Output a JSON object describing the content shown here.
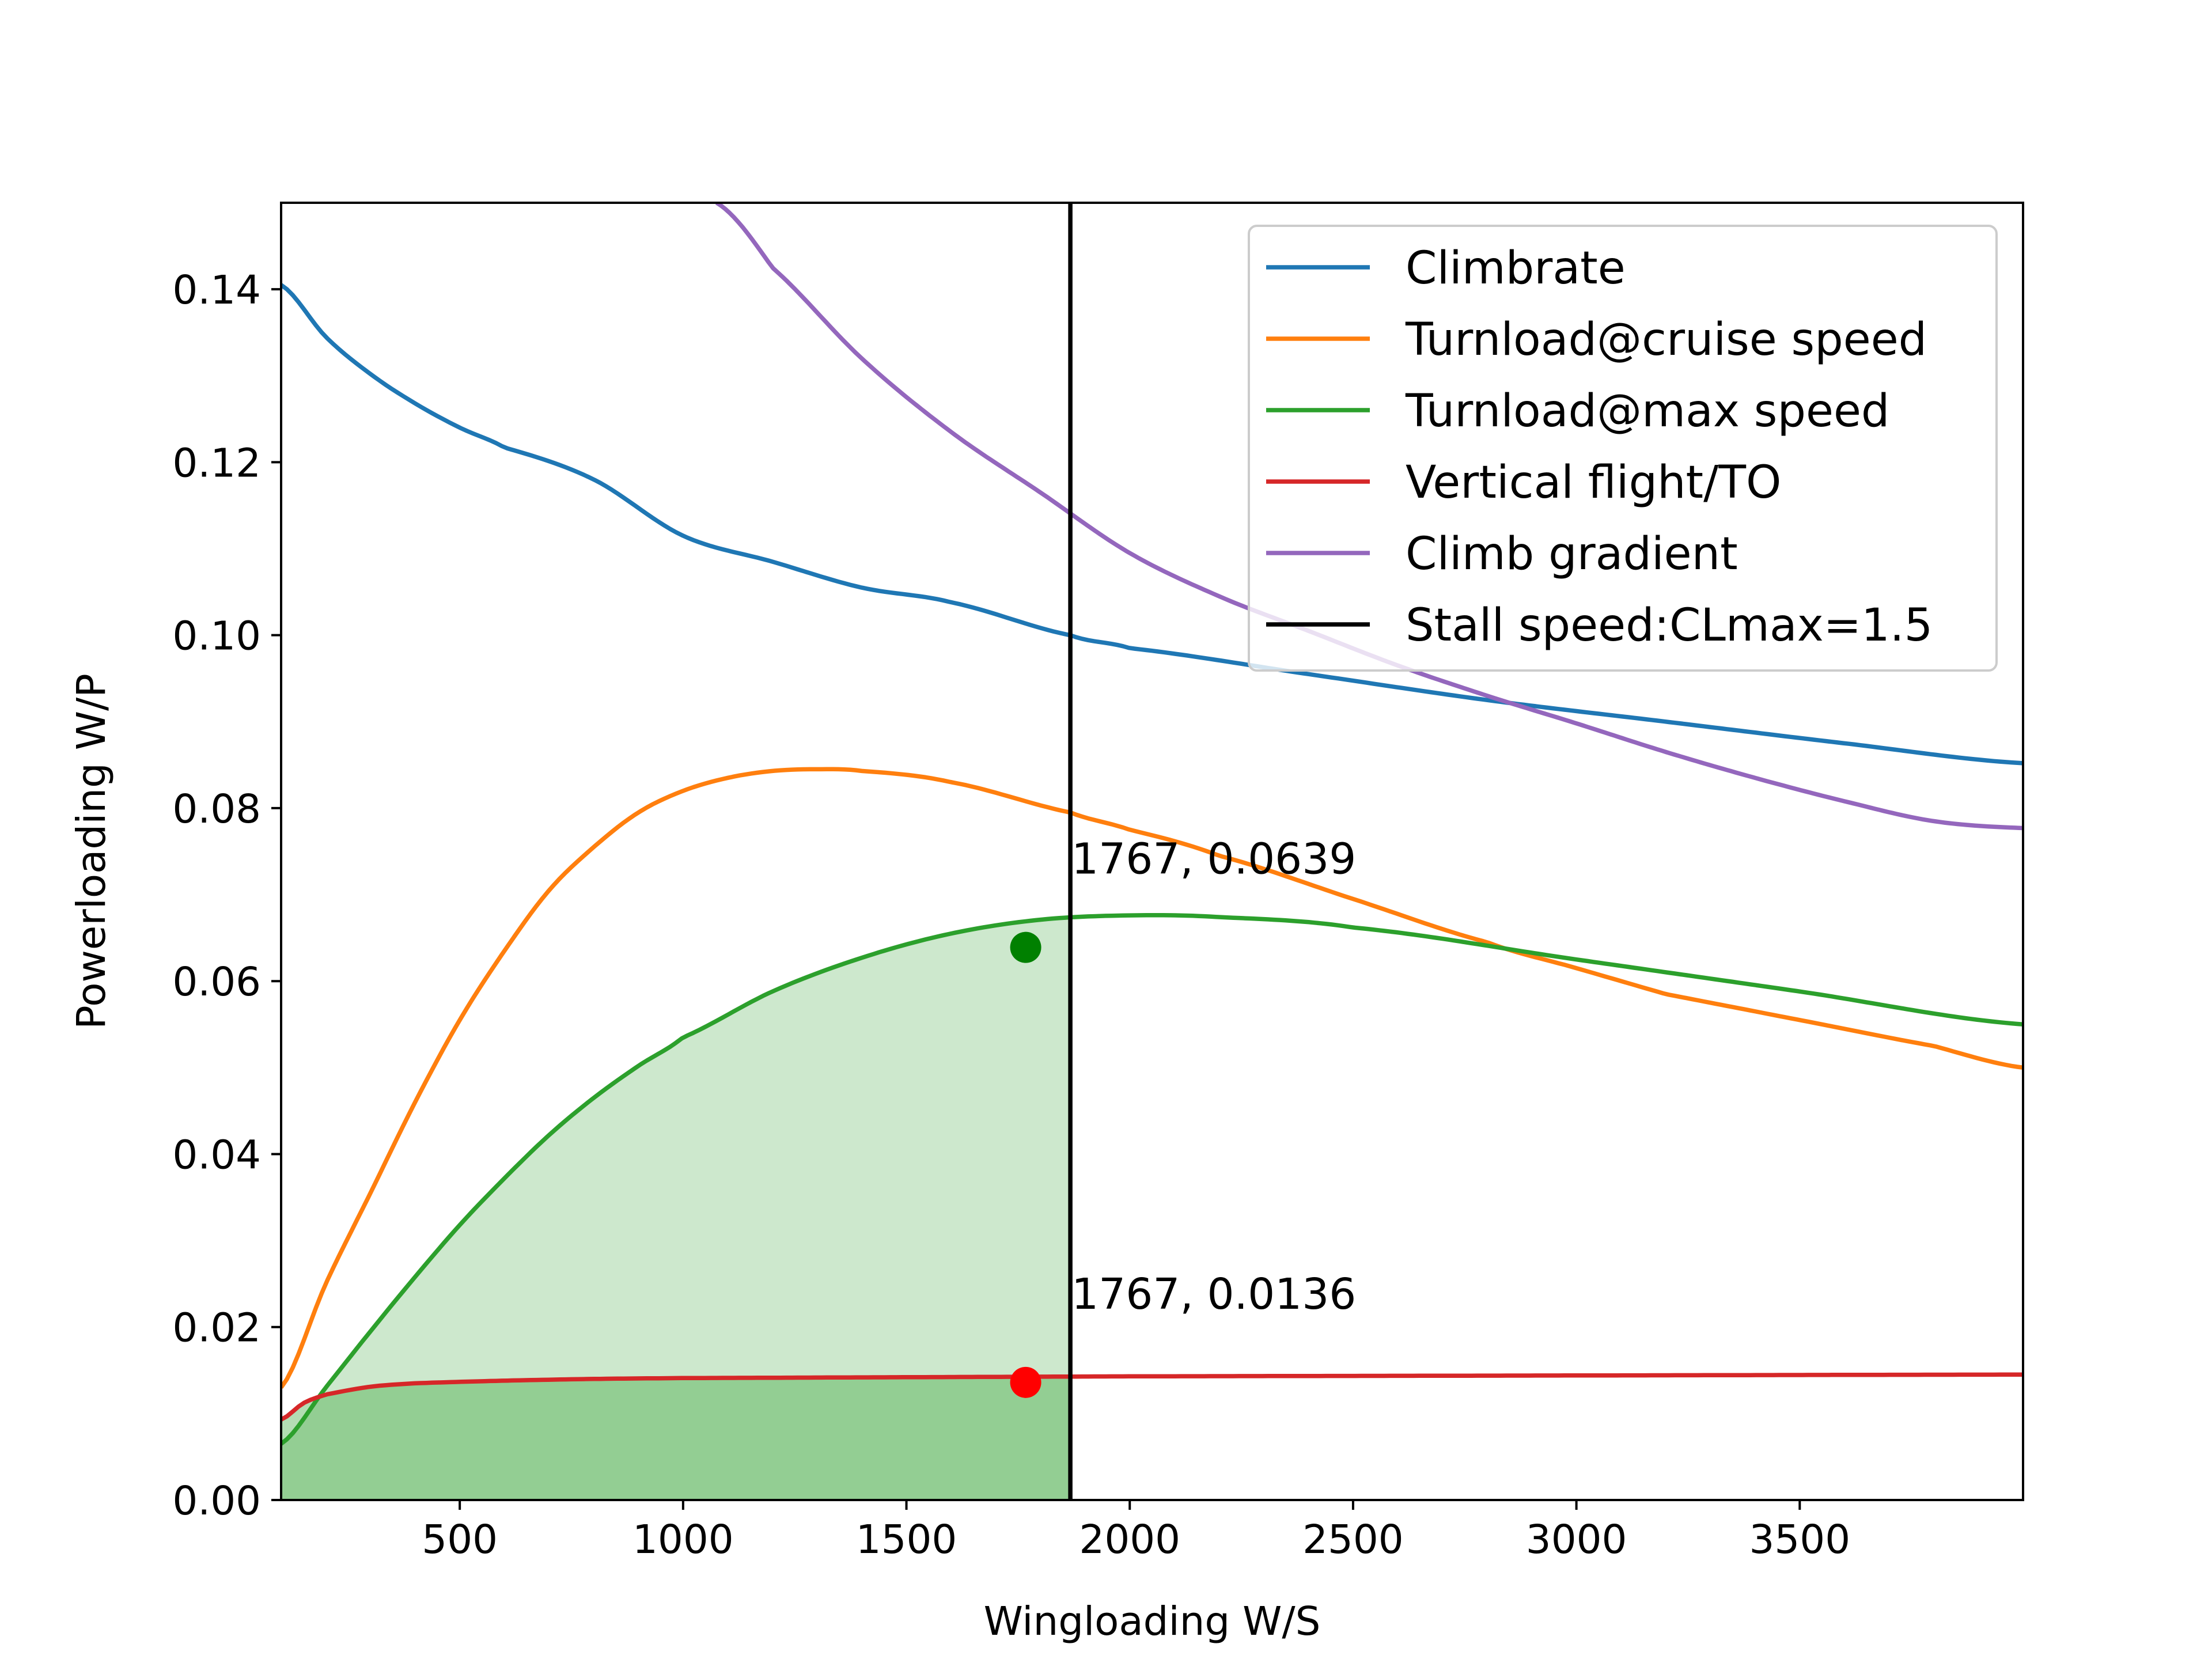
{
  "chart_data": {
    "type": "line",
    "title": "",
    "xlabel": "Wingloading W/S",
    "ylabel": "Powerloading W/P",
    "xlim": [
      100,
      4000
    ],
    "ylim": [
      0,
      0.15
    ],
    "xticks": [
      500,
      1000,
      1500,
      2000,
      2500,
      3000,
      3500
    ],
    "yticks": [
      0.0,
      0.02,
      0.04,
      0.06,
      0.08,
      0.1,
      0.12,
      0.14
    ],
    "xtick_labels": [
      "500",
      "1000",
      "1500",
      "2000",
      "2500",
      "3000",
      "3500"
    ],
    "ytick_labels": [
      "0.00",
      "0.02",
      "0.04",
      "0.06",
      "0.08",
      "0.10",
      "0.12",
      "0.14"
    ],
    "grid": false,
    "legend_position": "top-right",
    "series": [
      {
        "name": "Climbrate",
        "color": "#1f77b4",
        "x": [
          100,
          200,
          300,
          400,
          500,
          600,
          800,
          1000,
          1200,
          1400,
          1600,
          1867,
          2000,
          2400,
          2800,
          3200,
          3600,
          4000
        ],
        "y": [
          0.1405,
          0.1345,
          0.1302,
          0.1268,
          0.124,
          0.1217,
          0.118,
          0.1115,
          0.1085,
          0.1055,
          0.1038,
          0.1,
          0.0985,
          0.0955,
          0.0925,
          0.09,
          0.0875,
          0.0852
        ]
      },
      {
        "name": "Turnload@cruise speed",
        "color": "#ff7f0e",
        "x": [
          100,
          200,
          300,
          400,
          500,
          600,
          700,
          800,
          900,
          1000,
          1100,
          1200,
          1300,
          1400,
          1600,
          1867,
          2000,
          2200,
          2500,
          2800,
          3000,
          3200,
          3500,
          3800,
          4000
        ],
        "y": [
          0.013,
          0.025,
          0.0355,
          0.046,
          0.0555,
          0.0635,
          0.0705,
          0.0755,
          0.0795,
          0.082,
          0.0835,
          0.0843,
          0.0845,
          0.0843,
          0.083,
          0.0795,
          0.0775,
          0.0745,
          0.0695,
          0.0645,
          0.0615,
          0.0585,
          0.0555,
          0.0525,
          0.05
        ]
      },
      {
        "name": "Turnload@max speed",
        "color": "#2ca02c",
        "x": [
          100,
          200,
          300,
          400,
          500,
          600,
          700,
          800,
          900,
          1000,
          1200,
          1400,
          1600,
          1800,
          2000,
          2200,
          2500,
          3000,
          3500,
          4000
        ],
        "y": [
          0.0065,
          0.013,
          0.0195,
          0.0258,
          0.0318,
          0.0372,
          0.0422,
          0.0465,
          0.0502,
          0.0535,
          0.0588,
          0.0627,
          0.0655,
          0.0671,
          0.0676,
          0.0674,
          0.0662,
          0.0625,
          0.0588,
          0.055
        ]
      },
      {
        "name": "Vertical flight/TO",
        "color": "#d62728",
        "x": [
          100,
          150,
          200,
          300,
          400,
          600,
          800,
          1000,
          1500,
          2000,
          3000,
          4000
        ],
        "y": [
          0.0093,
          0.0112,
          0.0122,
          0.0131,
          0.0135,
          0.0138,
          0.014,
          0.0141,
          0.0142,
          0.0143,
          0.0144,
          0.0145
        ]
      },
      {
        "name": "Climb gradient",
        "color": "#9467bd",
        "x": [
          1075,
          1200,
          1400,
          1600,
          1800,
          2000,
          2200,
          2400,
          2600,
          2800,
          3000,
          3200,
          3400,
          3600,
          3800,
          4000
        ],
        "y": [
          0.15,
          0.1425,
          0.132,
          0.1235,
          0.1165,
          0.1095,
          0.1045,
          0.1005,
          0.0965,
          0.093,
          0.0898,
          0.0865,
          0.0835,
          0.0808,
          0.0785,
          0.0777
        ]
      },
      {
        "name": "Stall speed:CLmax=1.5",
        "color": "#000000",
        "x": [
          1867,
          1867
        ],
        "y": [
          0,
          0.15
        ]
      }
    ],
    "fill_regions": [
      {
        "between": [
          "Turnload@max speed",
          "baseline"
        ],
        "x_range": [
          100,
          1867
        ],
        "color": "#2ca02c",
        "opacity": 0.24
      },
      {
        "between": [
          "Vertical flight/TO",
          "baseline"
        ],
        "x_range": [
          100,
          1867
        ],
        "color": "#2ca02c",
        "opacity": 0.36
      }
    ],
    "points": [
      {
        "x": 1767,
        "y": 0.0639,
        "color": "#008000",
        "label": "1767, 0.0639"
      },
      {
        "x": 1767,
        "y": 0.0136,
        "color": "#ff0000",
        "label": "1767, 0.0136"
      }
    ]
  }
}
